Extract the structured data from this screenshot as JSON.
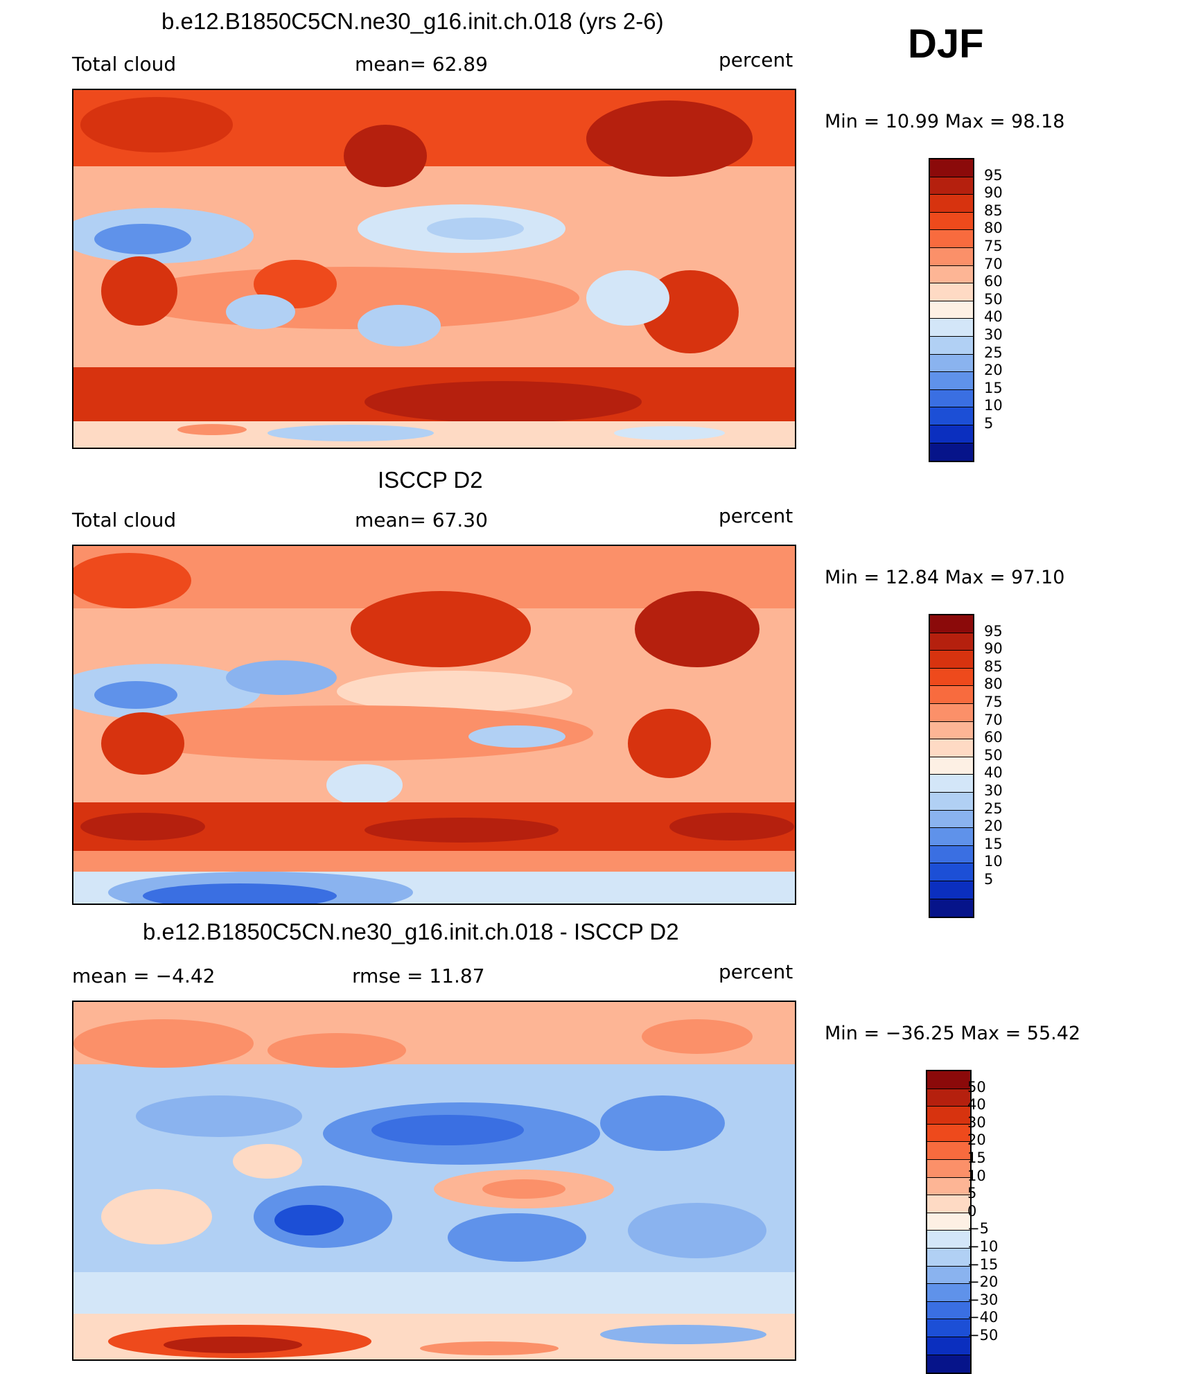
{
  "season": "DJF",
  "panels": [
    {
      "title": "b.e12.B1850C5CN.ne30_g16.init.ch.018 (yrs 2-6)",
      "left_label": "Total cloud",
      "center_label": "mean=   62.89",
      "units": "percent",
      "minmax": "Min =    10.99  Max =    98.18",
      "colorbar_levels": [
        "95",
        "90",
        "85",
        "80",
        "75",
        "70",
        "60",
        "50",
        "40",
        "30",
        "25",
        "20",
        "15",
        "10",
        "5"
      ],
      "colorbar_colors": [
        "#8b0a0a",
        "#b5200e",
        "#d7330f",
        "#ee4a1c",
        "#f86b3e",
        "#fb9069",
        "#fdb595",
        "#fedac4",
        "#fdf0e4",
        "#d3e6f8",
        "#b1d0f4",
        "#8ab3ef",
        "#5f92ea",
        "#3a6fe2",
        "#1c4fd6",
        "#0b2fbf",
        "#06148a"
      ]
    },
    {
      "title": "ISCCP D2",
      "left_label": "Total cloud",
      "center_label": "mean=   67.30",
      "units": "percent",
      "minmax": "Min =    12.84  Max =    97.10",
      "colorbar_levels": [
        "95",
        "90",
        "85",
        "80",
        "75",
        "70",
        "60",
        "50",
        "40",
        "30",
        "25",
        "20",
        "15",
        "10",
        "5"
      ],
      "colorbar_colors": [
        "#8b0a0a",
        "#b5200e",
        "#d7330f",
        "#ee4a1c",
        "#f86b3e",
        "#fb9069",
        "#fdb595",
        "#fedac4",
        "#fdf0e4",
        "#d3e6f8",
        "#b1d0f4",
        "#8ab3ef",
        "#5f92ea",
        "#3a6fe2",
        "#1c4fd6",
        "#0b2fbf",
        "#06148a"
      ]
    },
    {
      "title": "b.e12.B1850C5CN.ne30_g16.init.ch.018 - ISCCP D2",
      "left_label": "mean =    −4.42",
      "center_label": "rmse  =    11.87",
      "units": "percent",
      "minmax": "Min = −36.25  Max =    55.42",
      "colorbar_levels": [
        "50",
        "40",
        "30",
        "20",
        "15",
        "10",
        "5",
        "0",
        "−5",
        "−10",
        "−15",
        "−20",
        "−30",
        "−40",
        "−50"
      ],
      "colorbar_colors": [
        "#8b0a0a",
        "#b5200e",
        "#d7330f",
        "#ee4a1c",
        "#f86b3e",
        "#fb9069",
        "#fdb595",
        "#fedac4",
        "#fdf0e4",
        "#d3e6f8",
        "#b1d0f4",
        "#8ab3ef",
        "#5f92ea",
        "#3a6fe2",
        "#1c4fd6",
        "#0b2fbf",
        "#06148a"
      ]
    }
  ]
}
